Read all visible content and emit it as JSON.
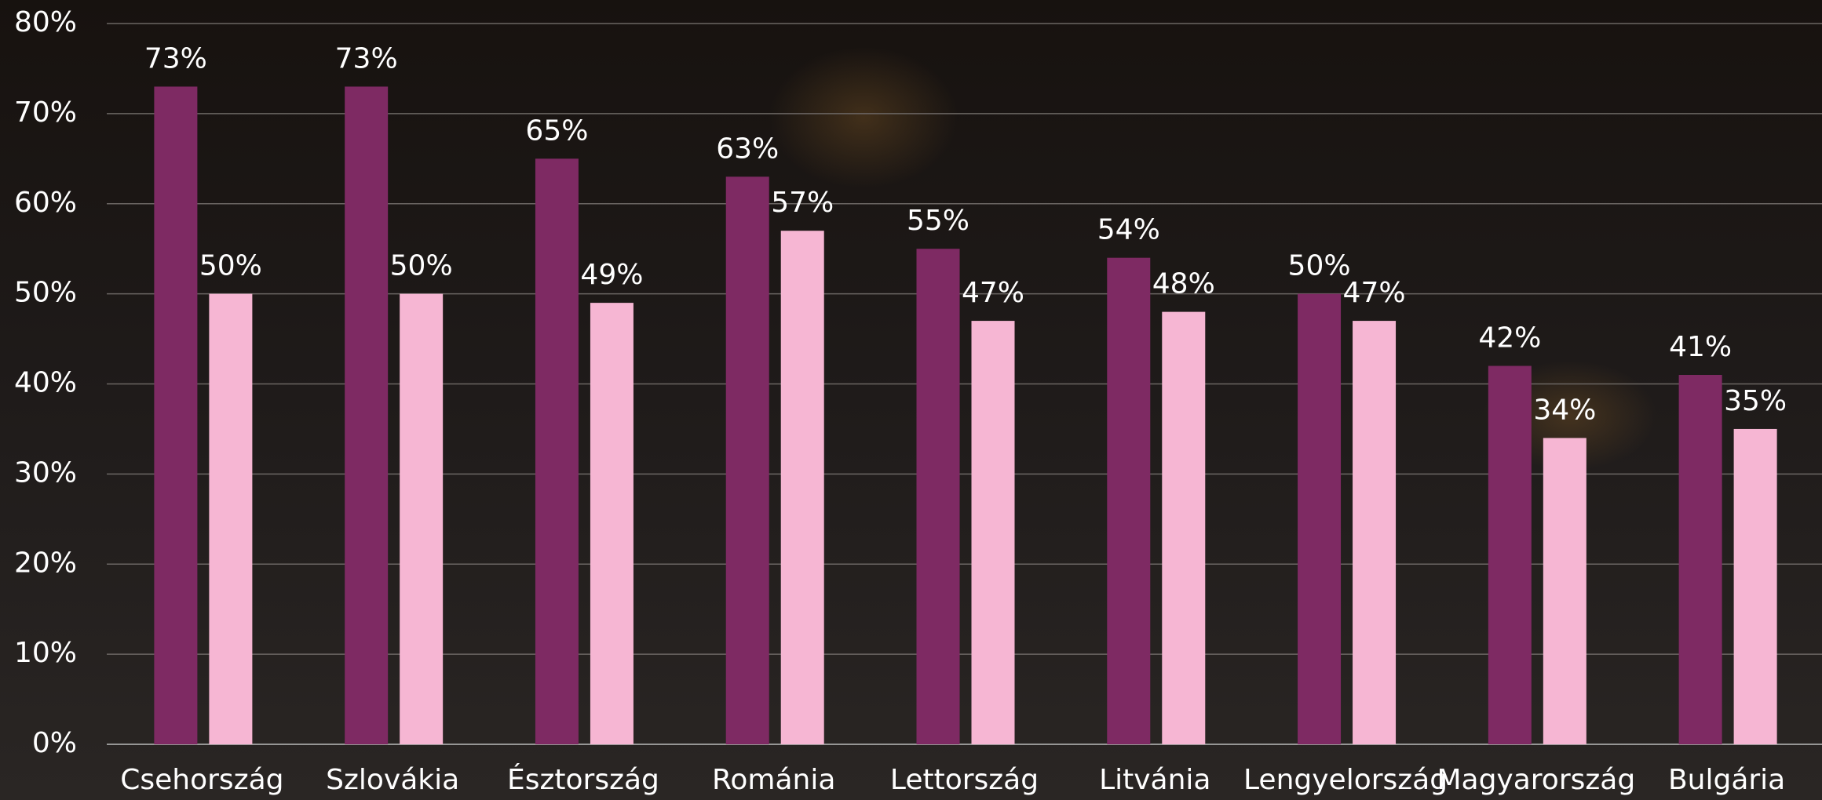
{
  "chart_data": {
    "type": "bar",
    "categories": [
      "Csehország",
      "Szlovákia",
      "Észtország",
      "Románia",
      "Lettország",
      "Litvánia",
      "Lengyelország",
      "Magyarország",
      "Bulgária"
    ],
    "series": [
      {
        "color": "#7e2a63",
        "values": [
          73,
          73,
          65,
          63,
          55,
          54,
          50,
          42,
          41
        ],
        "value_labels": [
          "73%",
          "73%",
          "65%",
          "63%",
          "55%",
          "54%",
          "50%",
          "42%",
          "41%"
        ]
      },
      {
        "color": "#f6b6d3",
        "values": [
          50,
          50,
          49,
          57,
          47,
          48,
          47,
          34,
          35
        ],
        "value_labels": [
          "50%",
          "50%",
          "49%",
          "57%",
          "47%",
          "48%",
          "47%",
          "34%",
          "35%"
        ]
      }
    ],
    "ylim": [
      0,
      80
    ],
    "yticks": [
      {
        "value": 0,
        "label": "0%"
      },
      {
        "value": 10,
        "label": "10%"
      },
      {
        "value": 20,
        "label": "20%"
      },
      {
        "value": 30,
        "label": "30%"
      },
      {
        "value": 40,
        "label": "40%"
      },
      {
        "value": 50,
        "label": "50%"
      },
      {
        "value": 60,
        "label": "60%"
      },
      {
        "value": 70,
        "label": "70%"
      },
      {
        "value": 80,
        "label": "80%"
      }
    ],
    "grid": true
  }
}
